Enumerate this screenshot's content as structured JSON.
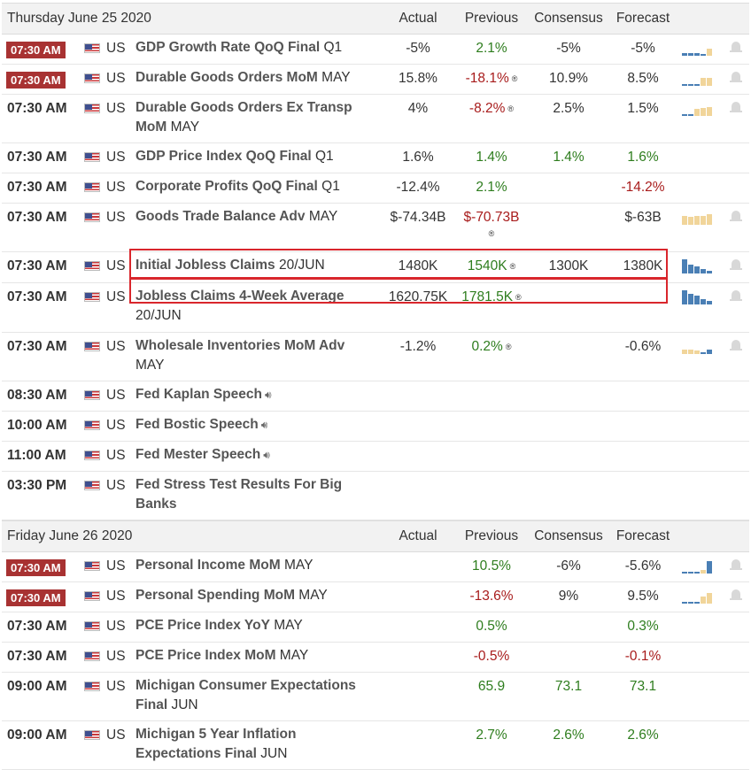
{
  "colors": {
    "accent_red": "#a83232",
    "green": "#2e7d1e",
    "red": "#a81c1c",
    "blue_bar": "#4a7fb5",
    "yellow_bar": "#f1d59a"
  },
  "columns": {
    "actual": "Actual",
    "previous": "Previous",
    "consensus": "Consensus",
    "forecast": "Forecast"
  },
  "sections": [
    {
      "date": "Thursday June 25 2020",
      "rows": [
        {
          "time": "07:30 AM",
          "country": "US",
          "title": "GDP Growth Rate QoQ Final",
          "period": "Q1",
          "actual": "-5%",
          "previous": "2.1%",
          "consensus": "-5%",
          "forecast": "-5%"
        },
        {
          "time": "07:30 AM",
          "country": "US",
          "title": "Durable Goods Orders MoM",
          "period": "MAY",
          "actual": "15.8%",
          "previous": "-18.1%",
          "consensus": "10.9%",
          "forecast": "8.5%"
        },
        {
          "time": "07:30 AM",
          "country": "US",
          "title": "Durable Goods Orders Ex Transp MoM",
          "period": "MAY",
          "actual": "4%",
          "previous": "-8.2%",
          "consensus": "2.5%",
          "forecast": "1.5%"
        },
        {
          "time": "07:30 AM",
          "country": "US",
          "title": "GDP Price Index QoQ Final",
          "period": "Q1",
          "actual": "1.6%",
          "previous": "1.4%",
          "consensus": "1.4%",
          "forecast": "1.6%"
        },
        {
          "time": "07:30 AM",
          "country": "US",
          "title": "Corporate Profits QoQ Final",
          "period": "Q1",
          "actual": "-12.4%",
          "previous": "2.1%",
          "consensus": "",
          "forecast": "-14.2%"
        },
        {
          "time": "07:30 AM",
          "country": "US",
          "title": "Goods Trade Balance Adv",
          "period": "MAY",
          "actual": "$-74.34B",
          "previous": "$-70.73B",
          "consensus": "",
          "forecast": "$-63B"
        },
        {
          "time": "07:30 AM",
          "country": "US",
          "title": "Initial Jobless Claims",
          "period": "20/JUN",
          "actual": "1480K",
          "previous": "1540K",
          "consensus": "1300K",
          "forecast": "1380K"
        },
        {
          "time": "07:30 AM",
          "country": "US",
          "title": "Jobless Claims 4-Week Average",
          "period": "20/JUN",
          "actual": "1620.75K",
          "previous": "1781.5K",
          "consensus": "",
          "forecast": ""
        },
        {
          "time": "07:30 AM",
          "country": "US",
          "title": "Wholesale Inventories MoM Adv",
          "period": "MAY",
          "actual": "-1.2%",
          "previous": "0.2%",
          "consensus": "",
          "forecast": "-0.6%"
        },
        {
          "time": "08:30 AM",
          "country": "US",
          "title": "Fed Kaplan Speech",
          "period": "",
          "actual": "",
          "previous": "",
          "consensus": "",
          "forecast": ""
        },
        {
          "time": "10:00 AM",
          "country": "US",
          "title": "Fed Bostic Speech",
          "period": "",
          "actual": "",
          "previous": "",
          "consensus": "",
          "forecast": ""
        },
        {
          "time": "11:00 AM",
          "country": "US",
          "title": "Fed Mester Speech",
          "period": "",
          "actual": "",
          "previous": "",
          "consensus": "",
          "forecast": ""
        },
        {
          "time": "03:30 PM",
          "country": "US",
          "title": "Fed Stress Test Results For Big Banks",
          "period": "",
          "actual": "",
          "previous": "",
          "consensus": "",
          "forecast": ""
        }
      ]
    },
    {
      "date": "Friday June 26 2020",
      "rows": [
        {
          "time": "07:30 AM",
          "country": "US",
          "title": "Personal Income MoM",
          "period": "MAY",
          "actual": "",
          "previous": "10.5%",
          "consensus": "-6%",
          "forecast": "-5.6%"
        },
        {
          "time": "07:30 AM",
          "country": "US",
          "title": "Personal Spending MoM",
          "period": "MAY",
          "actual": "",
          "previous": "-13.6%",
          "consensus": "9%",
          "forecast": "9.5%"
        },
        {
          "time": "07:30 AM",
          "country": "US",
          "title": "PCE Price Index YoY",
          "period": "MAY",
          "actual": "",
          "previous": "0.5%",
          "consensus": "",
          "forecast": "0.3%"
        },
        {
          "time": "07:30 AM",
          "country": "US",
          "title": "PCE Price Index MoM",
          "period": "MAY",
          "actual": "",
          "previous": "-0.5%",
          "consensus": "",
          "forecast": "-0.1%"
        },
        {
          "time": "09:00 AM",
          "country": "US",
          "title": "Michigan Consumer Expectations Final",
          "period": "JUN",
          "actual": "",
          "previous": "65.9",
          "consensus": "73.1",
          "forecast": "73.1"
        },
        {
          "time": "09:00 AM",
          "country": "US",
          "title": "Michigan 5 Year Inflation Expectations Final",
          "period": "JUN",
          "actual": "",
          "previous": "2.7%",
          "consensus": "2.6%",
          "forecast": "2.6%"
        }
      ]
    }
  ]
}
